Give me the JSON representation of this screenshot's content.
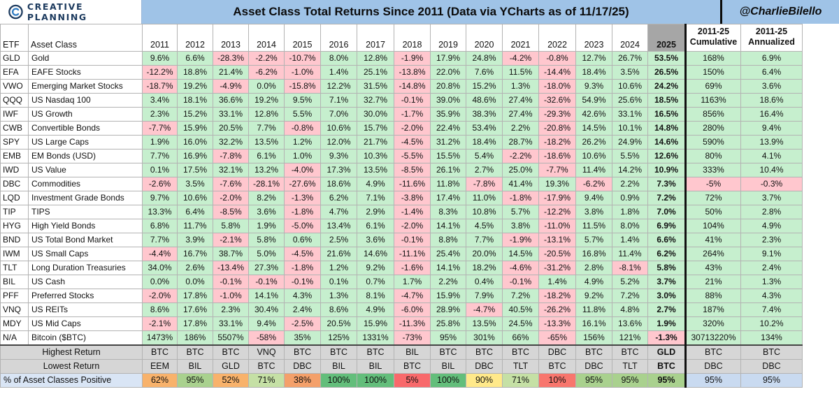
{
  "brand": {
    "logo_text": "CREATIVE PLANNING",
    "logo_icon": "creative-planning-c-icon"
  },
  "title": "Asset Class Total Returns Since 2011 (Data via YCharts as of 11/17/25)",
  "handle": "@CharlieBilello",
  "colors": {
    "header_blue": "#9fc3e7",
    "positive": "#c6efce",
    "negative": "#ffc7ce",
    "summary_gray": "#d6d6d6",
    "year_2025_header": "#a6a6a6"
  },
  "chart_data": {
    "type": "table",
    "columns": {
      "etf": "ETF",
      "asset_class": "Asset Class",
      "years": [
        "2011",
        "2012",
        "2013",
        "2014",
        "2015",
        "2016",
        "2017",
        "2018",
        "2019",
        "2020",
        "2021",
        "2022",
        "2023",
        "2024",
        "2025"
      ],
      "cumulative": "2011-25 Cumulative",
      "annualized": "2011-25 Annualized"
    },
    "rows": [
      {
        "etf": "GLD",
        "name": "Gold",
        "values": [
          "9.6%",
          "6.6%",
          "-28.3%",
          "-2.2%",
          "-10.7%",
          "8.0%",
          "12.8%",
          "-1.9%",
          "17.9%",
          "24.8%",
          "-4.2%",
          "-0.8%",
          "12.7%",
          "26.7%",
          "53.5%"
        ],
        "cum": "168%",
        "ann": "6.9%"
      },
      {
        "etf": "EFA",
        "name": "EAFE Stocks",
        "values": [
          "-12.2%",
          "18.8%",
          "21.4%",
          "-6.2%",
          "-1.0%",
          "1.4%",
          "25.1%",
          "-13.8%",
          "22.0%",
          "7.6%",
          "11.5%",
          "-14.4%",
          "18.4%",
          "3.5%",
          "26.5%"
        ],
        "cum": "150%",
        "ann": "6.4%"
      },
      {
        "etf": "VWO",
        "name": "Emerging Market Stocks",
        "values": [
          "-18.7%",
          "19.2%",
          "-4.9%",
          "0.0%",
          "-15.8%",
          "12.2%",
          "31.5%",
          "-14.8%",
          "20.8%",
          "15.2%",
          "1.3%",
          "-18.0%",
          "9.3%",
          "10.6%",
          "24.2%"
        ],
        "cum": "69%",
        "ann": "3.6%"
      },
      {
        "etf": "QQQ",
        "name": "US Nasdaq 100",
        "values": [
          "3.4%",
          "18.1%",
          "36.6%",
          "19.2%",
          "9.5%",
          "7.1%",
          "32.7%",
          "-0.1%",
          "39.0%",
          "48.6%",
          "27.4%",
          "-32.6%",
          "54.9%",
          "25.6%",
          "18.5%"
        ],
        "cum": "1163%",
        "ann": "18.6%"
      },
      {
        "etf": "IWF",
        "name": "US Growth",
        "values": [
          "2.3%",
          "15.2%",
          "33.1%",
          "12.8%",
          "5.5%",
          "7.0%",
          "30.0%",
          "-1.7%",
          "35.9%",
          "38.3%",
          "27.4%",
          "-29.3%",
          "42.6%",
          "33.1%",
          "16.5%"
        ],
        "cum": "856%",
        "ann": "16.4%"
      },
      {
        "etf": "CWB",
        "name": "Convertible Bonds",
        "values": [
          "-7.7%",
          "15.9%",
          "20.5%",
          "7.7%",
          "-0.8%",
          "10.6%",
          "15.7%",
          "-2.0%",
          "22.4%",
          "53.4%",
          "2.2%",
          "-20.8%",
          "14.5%",
          "10.1%",
          "14.8%"
        ],
        "cum": "280%",
        "ann": "9.4%"
      },
      {
        "etf": "SPY",
        "name": "US Large Caps",
        "values": [
          "1.9%",
          "16.0%",
          "32.2%",
          "13.5%",
          "1.2%",
          "12.0%",
          "21.7%",
          "-4.5%",
          "31.2%",
          "18.4%",
          "28.7%",
          "-18.2%",
          "26.2%",
          "24.9%",
          "14.6%"
        ],
        "cum": "590%",
        "ann": "13.9%"
      },
      {
        "etf": "EMB",
        "name": "EM Bonds (USD)",
        "values": [
          "7.7%",
          "16.9%",
          "-7.8%",
          "6.1%",
          "1.0%",
          "9.3%",
          "10.3%",
          "-5.5%",
          "15.5%",
          "5.4%",
          "-2.2%",
          "-18.6%",
          "10.6%",
          "5.5%",
          "12.6%"
        ],
        "cum": "80%",
        "ann": "4.1%"
      },
      {
        "etf": "IWD",
        "name": "US Value",
        "values": [
          "0.1%",
          "17.5%",
          "32.1%",
          "13.2%",
          "-4.0%",
          "17.3%",
          "13.5%",
          "-8.5%",
          "26.1%",
          "2.7%",
          "25.0%",
          "-7.7%",
          "11.4%",
          "14.2%",
          "10.9%"
        ],
        "cum": "333%",
        "ann": "10.4%"
      },
      {
        "etf": "DBC",
        "name": "Commodities",
        "values": [
          "-2.6%",
          "3.5%",
          "-7.6%",
          "-28.1%",
          "-27.6%",
          "18.6%",
          "4.9%",
          "-11.6%",
          "11.8%",
          "-7.8%",
          "41.4%",
          "19.3%",
          "-6.2%",
          "2.2%",
          "7.3%"
        ],
        "cum": "-5%",
        "ann": "-0.3%"
      },
      {
        "etf": "LQD",
        "name": "Investment Grade Bonds",
        "values": [
          "9.7%",
          "10.6%",
          "-2.0%",
          "8.2%",
          "-1.3%",
          "6.2%",
          "7.1%",
          "-3.8%",
          "17.4%",
          "11.0%",
          "-1.8%",
          "-17.9%",
          "9.4%",
          "0.9%",
          "7.2%"
        ],
        "cum": "72%",
        "ann": "3.7%"
      },
      {
        "etf": "TIP",
        "name": "TIPS",
        "values": [
          "13.3%",
          "6.4%",
          "-8.5%",
          "3.6%",
          "-1.8%",
          "4.7%",
          "2.9%",
          "-1.4%",
          "8.3%",
          "10.8%",
          "5.7%",
          "-12.2%",
          "3.8%",
          "1.8%",
          "7.0%"
        ],
        "cum": "50%",
        "ann": "2.8%"
      },
      {
        "etf": "HYG",
        "name": "High Yield Bonds",
        "values": [
          "6.8%",
          "11.7%",
          "5.8%",
          "1.9%",
          "-5.0%",
          "13.4%",
          "6.1%",
          "-2.0%",
          "14.1%",
          "4.5%",
          "3.8%",
          "-11.0%",
          "11.5%",
          "8.0%",
          "6.9%"
        ],
        "cum": "104%",
        "ann": "4.9%"
      },
      {
        "etf": "BND",
        "name": "US Total Bond Market",
        "values": [
          "7.7%",
          "3.9%",
          "-2.1%",
          "5.8%",
          "0.6%",
          "2.5%",
          "3.6%",
          "-0.1%",
          "8.8%",
          "7.7%",
          "-1.9%",
          "-13.1%",
          "5.7%",
          "1.4%",
          "6.6%"
        ],
        "cum": "41%",
        "ann": "2.3%"
      },
      {
        "etf": "IWM",
        "name": "US Small Caps",
        "values": [
          "-4.4%",
          "16.7%",
          "38.7%",
          "5.0%",
          "-4.5%",
          "21.6%",
          "14.6%",
          "-11.1%",
          "25.4%",
          "20.0%",
          "14.5%",
          "-20.5%",
          "16.8%",
          "11.4%",
          "6.2%"
        ],
        "cum": "264%",
        "ann": "9.1%"
      },
      {
        "etf": "TLT",
        "name": "Long Duration Treasuries",
        "values": [
          "34.0%",
          "2.6%",
          "-13.4%",
          "27.3%",
          "-1.8%",
          "1.2%",
          "9.2%",
          "-1.6%",
          "14.1%",
          "18.2%",
          "-4.6%",
          "-31.2%",
          "2.8%",
          "-8.1%",
          "5.8%"
        ],
        "cum": "43%",
        "ann": "2.4%"
      },
      {
        "etf": "BIL",
        "name": "US Cash",
        "values": [
          "0.0%",
          "0.0%",
          "-0.1%",
          "-0.1%",
          "-0.1%",
          "0.1%",
          "0.7%",
          "1.7%",
          "2.2%",
          "0.4%",
          "-0.1%",
          "1.4%",
          "4.9%",
          "5.2%",
          "3.7%"
        ],
        "cum": "21%",
        "ann": "1.3%"
      },
      {
        "etf": "PFF",
        "name": "Preferred Stocks",
        "values": [
          "-2.0%",
          "17.8%",
          "-1.0%",
          "14.1%",
          "4.3%",
          "1.3%",
          "8.1%",
          "-4.7%",
          "15.9%",
          "7.9%",
          "7.2%",
          "-18.2%",
          "9.2%",
          "7.2%",
          "3.0%"
        ],
        "cum": "88%",
        "ann": "4.3%"
      },
      {
        "etf": "VNQ",
        "name": "US REITs",
        "values": [
          "8.6%",
          "17.6%",
          "2.3%",
          "30.4%",
          "2.4%",
          "8.6%",
          "4.9%",
          "-6.0%",
          "28.9%",
          "-4.7%",
          "40.5%",
          "-26.2%",
          "11.8%",
          "4.8%",
          "2.7%"
        ],
        "cum": "187%",
        "ann": "7.4%"
      },
      {
        "etf": "MDY",
        "name": "US Mid Caps",
        "values": [
          "-2.1%",
          "17.8%",
          "33.1%",
          "9.4%",
          "-2.5%",
          "20.5%",
          "15.9%",
          "-11.3%",
          "25.8%",
          "13.5%",
          "24.5%",
          "-13.3%",
          "16.1%",
          "13.6%",
          "1.9%"
        ],
        "cum": "320%",
        "ann": "10.2%"
      },
      {
        "etf": "N/A",
        "name": "Bitcoin ($BTC)",
        "values": [
          "1473%",
          "186%",
          "5507%",
          "-58%",
          "35%",
          "125%",
          "1331%",
          "-73%",
          "95%",
          "301%",
          "66%",
          "-65%",
          "156%",
          "121%",
          "-1.3%"
        ],
        "cum": "30713220%",
        "ann": "134%"
      }
    ],
    "highest": {
      "label": "Highest Return",
      "values": [
        "BTC",
        "BTC",
        "BTC",
        "VNQ",
        "BTC",
        "BTC",
        "BTC",
        "BIL",
        "BTC",
        "BTC",
        "BTC",
        "DBC",
        "BTC",
        "BTC",
        "GLD"
      ],
      "cum": "BTC",
      "ann": "BTC"
    },
    "lowest": {
      "label": "Lowest Return",
      "values": [
        "EEM",
        "BIL",
        "GLD",
        "BTC",
        "DBC",
        "BIL",
        "BIL",
        "BTC",
        "BIL",
        "DBC",
        "TLT",
        "BTC",
        "DBC",
        "TLT",
        "BTC"
      ],
      "cum": "DBC",
      "ann": "DBC"
    },
    "positive": {
      "label": "% of Asset Classes Positive",
      "values": [
        "62%",
        "95%",
        "52%",
        "71%",
        "38%",
        "100%",
        "100%",
        "5%",
        "100%",
        "90%",
        "71%",
        "10%",
        "95%",
        "95%",
        "95%"
      ],
      "cum": "95%",
      "ann": "95%"
    },
    "positive_colors": [
      "#f8b26b",
      "#a9d18e",
      "#f8b26b",
      "#c5e0a5",
      "#f4a06a",
      "#63be7b",
      "#63be7b",
      "#f8696b",
      "#63be7b",
      "#ffe98a",
      "#c5e0a5",
      "#f8766d",
      "#a9d18e",
      "#a9d18e",
      "#a9d18e"
    ],
    "positive_summary_color": "#c9daf0"
  }
}
